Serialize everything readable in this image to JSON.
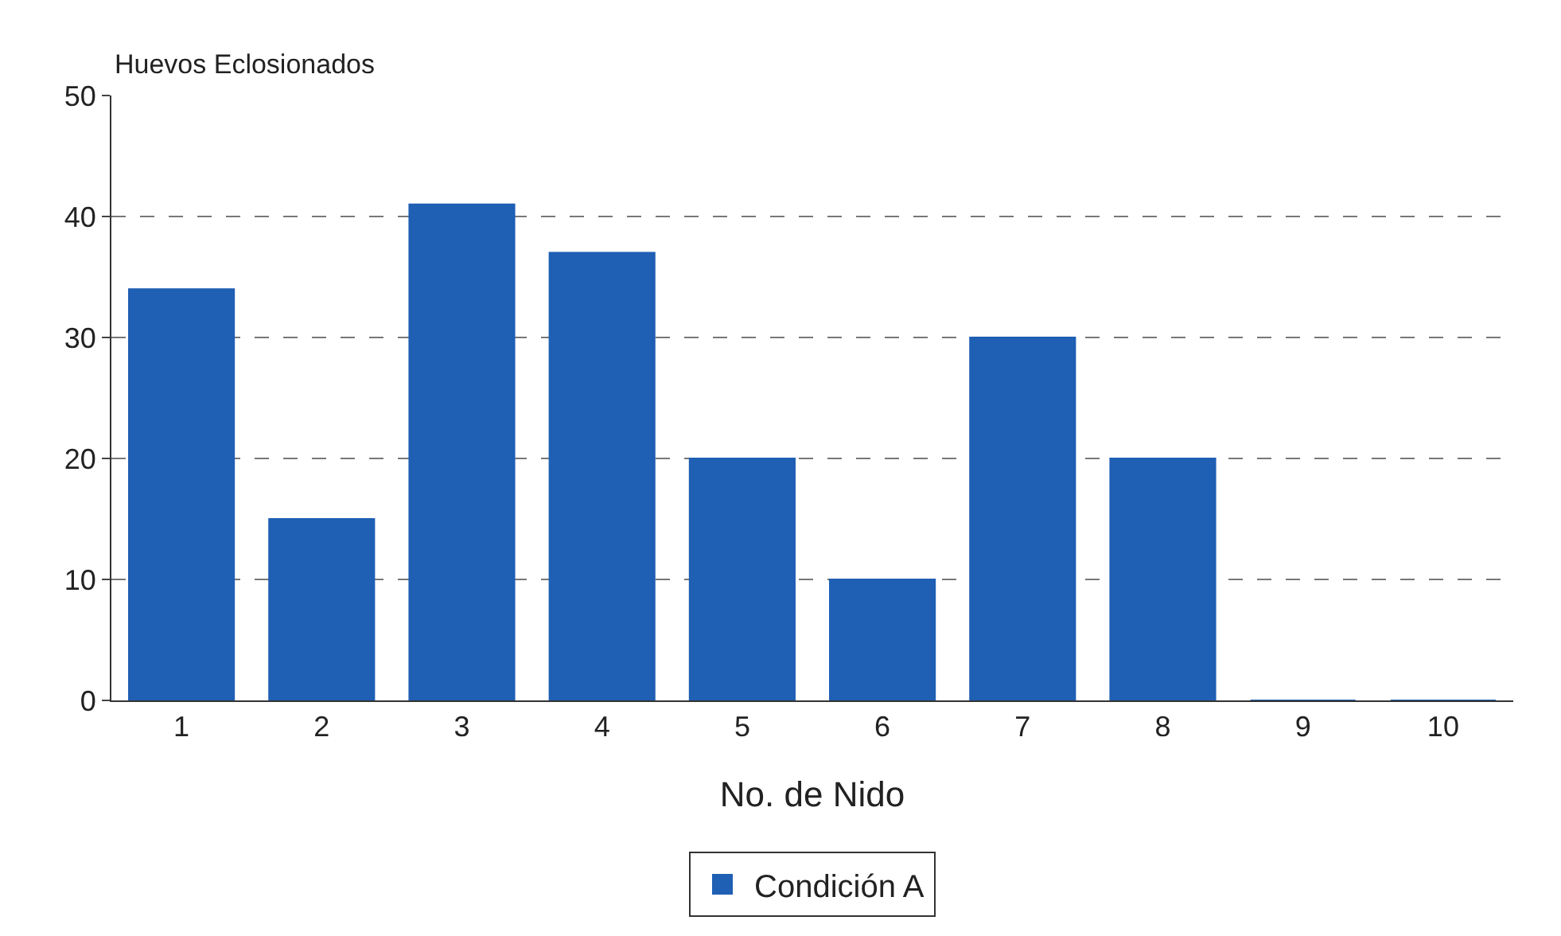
{
  "chart_data": {
    "type": "bar",
    "ylabel": "Huevos Eclosionados",
    "xlabel": "No. de Nido",
    "categories": [
      "1",
      "2",
      "3",
      "4",
      "5",
      "6",
      "7",
      "8",
      "9",
      "10"
    ],
    "series": [
      {
        "name": "Condición A",
        "color": "#1f5fb4",
        "values": [
          34,
          15,
          41,
          37,
          20,
          10,
          30,
          20,
          0,
          0
        ]
      }
    ],
    "ylim": [
      0,
      50
    ],
    "yticks": [
      0,
      10,
      20,
      30,
      40,
      50
    ],
    "grid": "y",
    "legend": "bottom"
  }
}
